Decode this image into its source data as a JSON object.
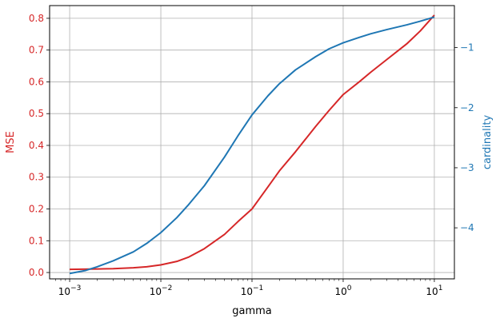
{
  "chart_data": {
    "type": "line",
    "xlabel": "gamma",
    "x_scale": "log",
    "xlim": [
      0.001,
      10
    ],
    "x_ticks": [
      {
        "base": "10",
        "exp": "−3"
      },
      {
        "base": "10",
        "exp": "−2"
      },
      {
        "base": "10",
        "exp": "−1"
      },
      {
        "base": "10",
        "exp": "0"
      },
      {
        "base": "10",
        "exp": "1"
      }
    ],
    "ylabel_left": "MSE",
    "ylabel_right": "cardinality",
    "ylim_left": [
      -0.02,
      0.84
    ],
    "ylim_right": [
      -4.85,
      -0.3
    ],
    "y_ticks_left": [
      "0.0",
      "0.1",
      "0.2",
      "0.3",
      "0.4",
      "0.5",
      "0.6",
      "0.7",
      "0.8"
    ],
    "y_ticks_right": [
      "−1",
      "−2",
      "−3",
      "−4"
    ],
    "grid": true,
    "series": [
      {
        "axis": "left",
        "color": "#d62728",
        "x": [
          0.001,
          0.002,
          0.003,
          0.005,
          0.007,
          0.01,
          0.015,
          0.02,
          0.03,
          0.05,
          0.07,
          0.1,
          0.15,
          0.2,
          0.3,
          0.5,
          0.7,
          1,
          1.5,
          2,
          3,
          5,
          7,
          10
        ],
        "y": [
          0.01,
          0.011,
          0.012,
          0.015,
          0.018,
          0.024,
          0.035,
          0.048,
          0.075,
          0.12,
          0.16,
          0.2,
          0.27,
          0.32,
          0.38,
          0.46,
          0.51,
          0.56,
          0.6,
          0.63,
          0.67,
          0.72,
          0.76,
          0.81
        ]
      },
      {
        "axis": "right",
        "color": "#1f77b4",
        "x": [
          0.001,
          0.0015,
          0.002,
          0.003,
          0.005,
          0.007,
          0.01,
          0.015,
          0.02,
          0.03,
          0.05,
          0.07,
          0.1,
          0.15,
          0.2,
          0.3,
          0.5,
          0.7,
          1,
          1.5,
          2,
          3,
          5,
          7,
          10
        ],
        "y": [
          -4.76,
          -4.71,
          -4.65,
          -4.55,
          -4.4,
          -4.26,
          -4.08,
          -3.83,
          -3.62,
          -3.3,
          -2.82,
          -2.47,
          -2.12,
          -1.8,
          -1.6,
          -1.37,
          -1.15,
          -1.02,
          -0.92,
          -0.83,
          -0.77,
          -0.7,
          -0.62,
          -0.56,
          -0.49
        ]
      }
    ]
  }
}
